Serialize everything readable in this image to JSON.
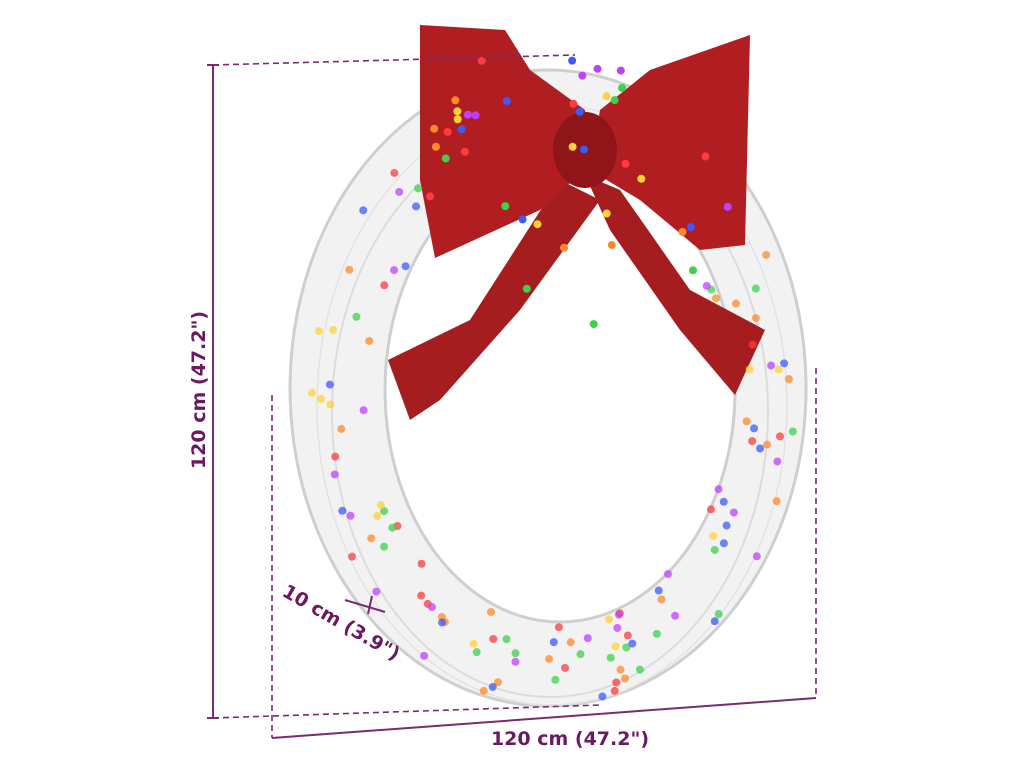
{
  "dimensions": {
    "height": "120 cm (47.2\")",
    "width": "120 cm (47.2\")",
    "depth": "10 cm (3.9\")"
  }
}
